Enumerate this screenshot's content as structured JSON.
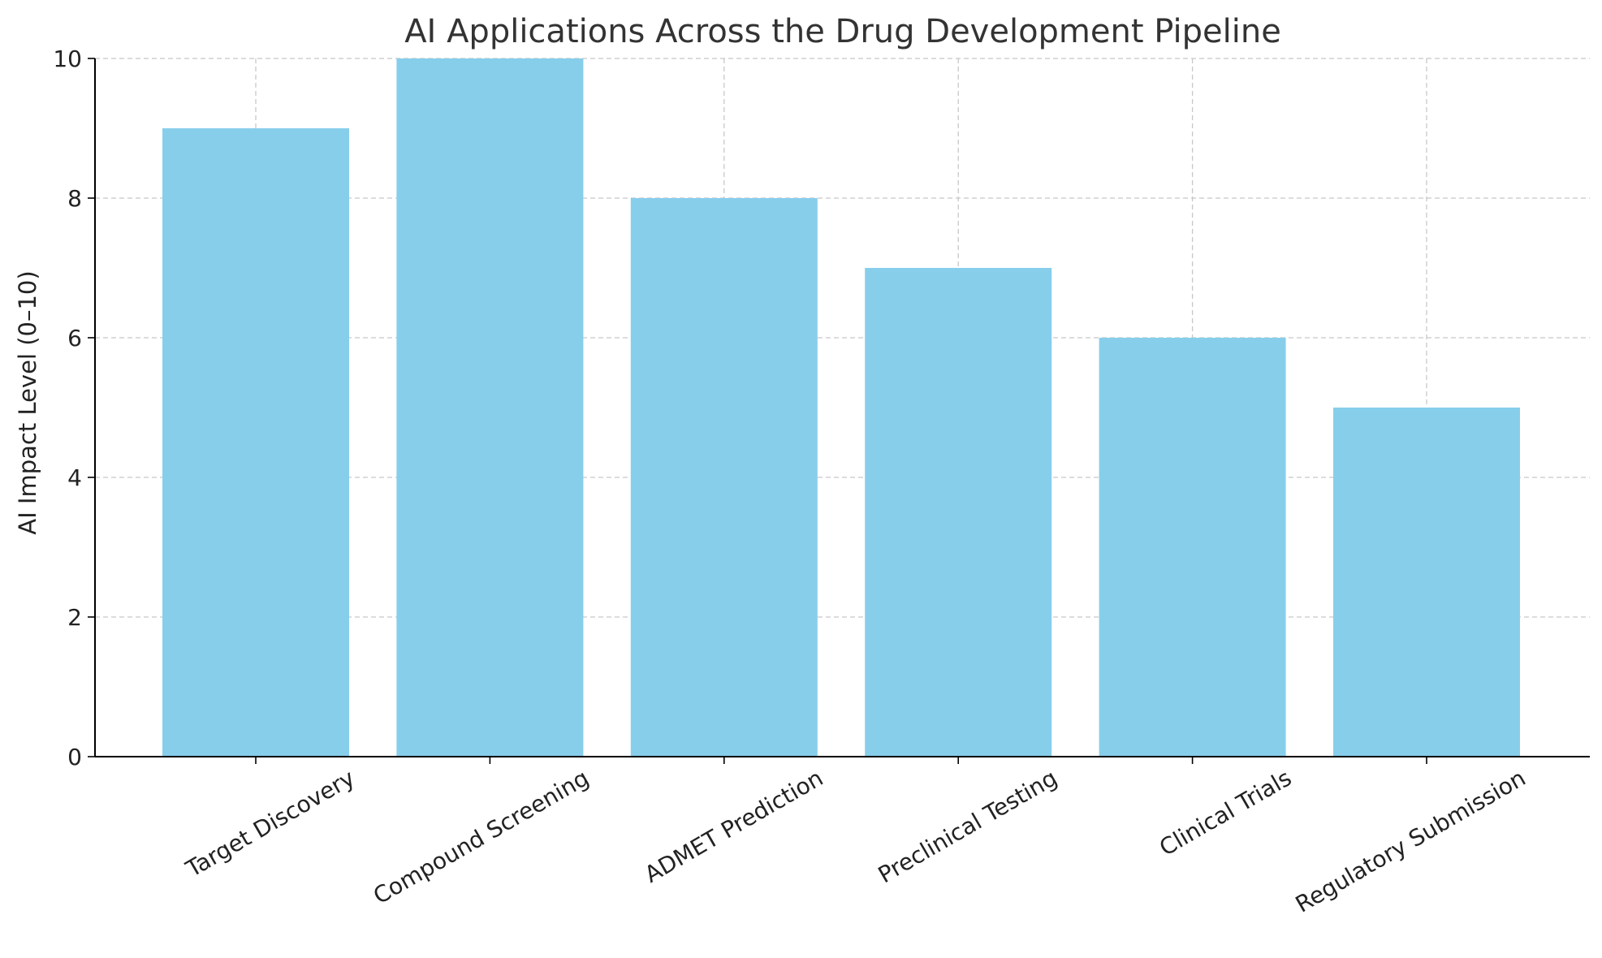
{
  "chart_data": {
    "type": "bar",
    "title": "AI Applications Across the Drug Development Pipeline",
    "xlabel": "",
    "ylabel": "AI Impact Level (0–10)",
    "categories": [
      "Target Discovery",
      "Compound Screening",
      "ADMET Prediction",
      "Preclinical Testing",
      "Clinical Trials",
      "Regulatory Submission"
    ],
    "values": [
      9,
      10,
      8,
      7,
      6,
      5
    ],
    "ylim": [
      0,
      10
    ],
    "yticks": [
      "0",
      "2",
      "4",
      "6",
      "8",
      "10"
    ],
    "grid": true,
    "legend": "none",
    "bar_color": "#87CEEB"
  }
}
